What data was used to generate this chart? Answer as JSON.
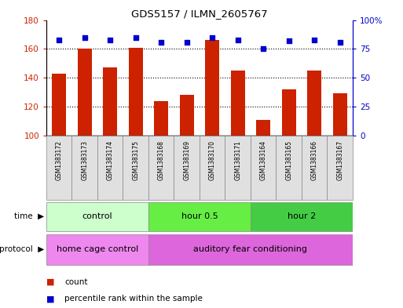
{
  "title": "GDS5157 / ILMN_2605767",
  "samples": [
    "GSM1383172",
    "GSM1383173",
    "GSM1383174",
    "GSM1383175",
    "GSM1383168",
    "GSM1383169",
    "GSM1383170",
    "GSM1383171",
    "GSM1383164",
    "GSM1383165",
    "GSM1383166",
    "GSM1383167"
  ],
  "bar_values": [
    143,
    160,
    147,
    161,
    124,
    128,
    166,
    145,
    111,
    132,
    145,
    129
  ],
  "percentile_values": [
    83,
    85,
    83,
    85,
    81,
    81,
    85,
    83,
    75,
    82,
    83,
    81
  ],
  "ylim_left": [
    100,
    180
  ],
  "ylim_right": [
    0,
    100
  ],
  "yticks_left": [
    100,
    120,
    140,
    160,
    180
  ],
  "yticks_right": [
    0,
    25,
    50,
    75,
    100
  ],
  "yticklabels_right": [
    "0",
    "25",
    "50",
    "75",
    "100%"
  ],
  "bar_color": "#cc2200",
  "scatter_color": "#0000cc",
  "time_groups": [
    {
      "label": "control",
      "start": 0,
      "end": 4,
      "color": "#ccffcc"
    },
    {
      "label": "hour 0.5",
      "start": 4,
      "end": 8,
      "color": "#66ee44"
    },
    {
      "label": "hour 2",
      "start": 8,
      "end": 12,
      "color": "#44cc44"
    }
  ],
  "protocol_groups": [
    {
      "label": "home cage control",
      "start": 0,
      "end": 4,
      "color": "#ee88ee"
    },
    {
      "label": "auditory fear conditioning",
      "start": 4,
      "end": 12,
      "color": "#dd66dd"
    }
  ],
  "tick_color_left": "#cc2200",
  "tick_color_right": "#0000cc"
}
